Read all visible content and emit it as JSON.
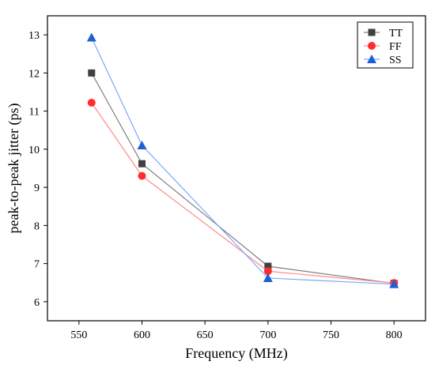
{
  "chart_data": {
    "type": "line",
    "title": "",
    "xlabel": "Frequency (MHz)",
    "ylabel": "peak-to-peak jitter (ps)",
    "x": [
      560,
      600,
      700,
      800
    ],
    "xlim": [
      525,
      825
    ],
    "ylim": [
      5.5,
      13.5
    ],
    "xticks": [
      550,
      600,
      650,
      700,
      750,
      800
    ],
    "yticks": [
      6,
      7,
      8,
      9,
      10,
      11,
      12,
      13
    ],
    "grid": false,
    "legend_position": "top-right",
    "series": [
      {
        "name": "TT",
        "values": [
          12.0,
          9.62,
          6.93,
          6.48
        ],
        "color": "#404040",
        "line_color": "#808080",
        "marker": "square"
      },
      {
        "name": "FF",
        "values": [
          11.22,
          9.3,
          6.8,
          6.49
        ],
        "color": "#ff2d2d",
        "line_color": "#ff8a8a",
        "marker": "circle"
      },
      {
        "name": "SS",
        "values": [
          12.93,
          10.1,
          6.62,
          6.46
        ],
        "color": "#1f5fd6",
        "line_color": "#7aa8ff",
        "marker": "triangle"
      }
    ]
  }
}
